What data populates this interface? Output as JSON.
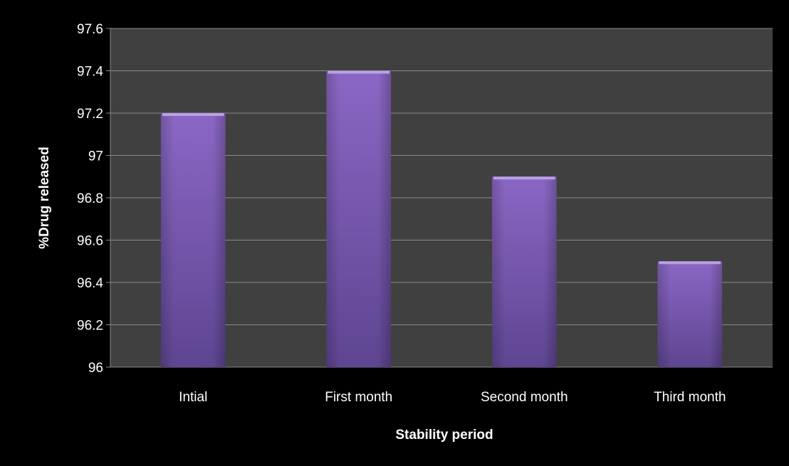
{
  "chart_data": {
    "type": "bar",
    "categories": [
      "Intial",
      "First month",
      "Second month",
      "Third month"
    ],
    "values": [
      97.2,
      97.4,
      96.9,
      96.5
    ],
    "xlabel": "Stability period",
    "ylabel": "%Drug released",
    "ylim": [
      96,
      97.6
    ],
    "yticks": [
      "96",
      "96.2",
      "96.4",
      "96.6",
      "96.8",
      "97",
      "97.2",
      "97.4",
      "97.6"
    ],
    "grid": true,
    "legend": "none"
  },
  "colors": {
    "background": "#000000",
    "plot_area": "#404040",
    "gridline": "#8a8a8a",
    "bar_top": "#8a67c4",
    "bar_bottom": "#5e4591",
    "bar_cap": "#b9a0e6",
    "text": "#ffffff"
  }
}
